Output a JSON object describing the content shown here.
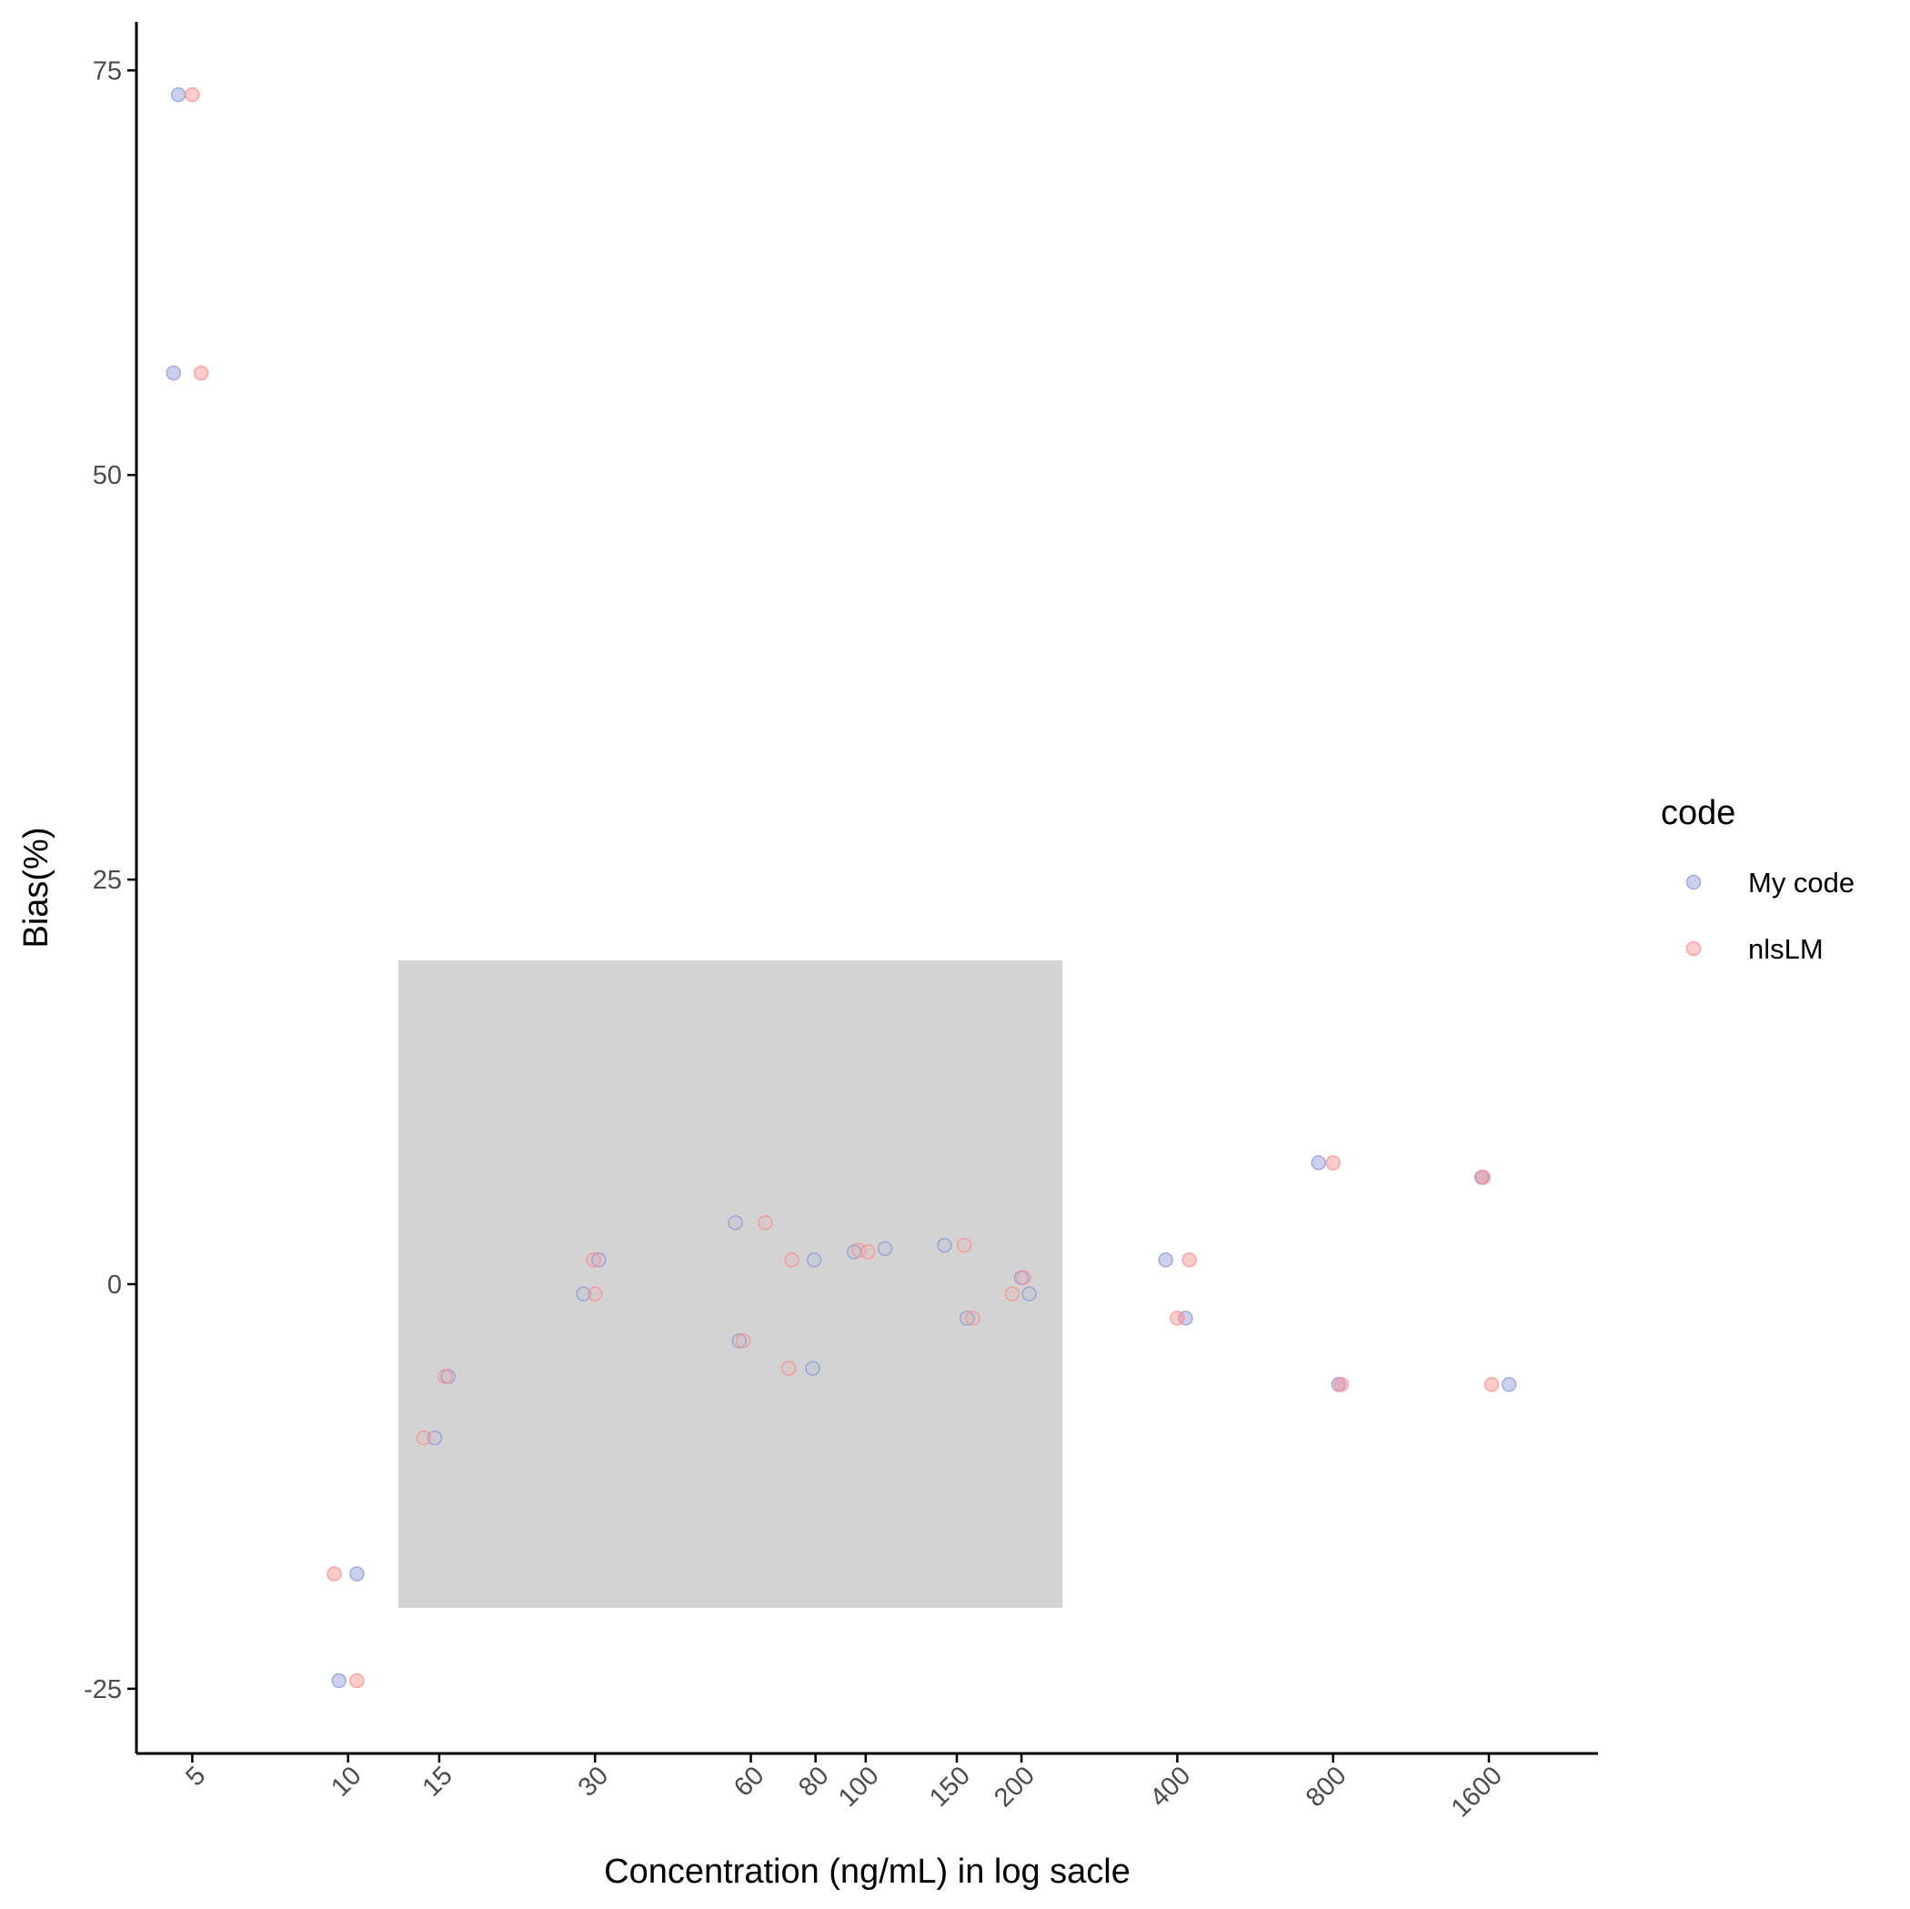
{
  "chart_data": {
    "type": "scatter",
    "title": "",
    "xlabel": "Concentration (ng/mL) in log sacle",
    "ylabel": "Bias(%)",
    "x_scale": "log",
    "xlim": [
      3.9,
      2600
    ],
    "ylim": [
      -29,
      78
    ],
    "x_ticks": [
      5,
      10,
      15,
      30,
      60,
      80,
      100,
      150,
      200,
      400,
      800,
      1600
    ],
    "x_tick_labels": [
      "5",
      "10",
      "15",
      "30",
      "60",
      "80",
      "100",
      "150",
      "200",
      "400",
      "800",
      "1600"
    ],
    "y_ticks": [
      75,
      50,
      25,
      0,
      -25
    ],
    "y_tick_labels": [
      "75",
      "50",
      "25",
      "0",
      "-25"
    ],
    "grid": false,
    "legend": {
      "title": "code",
      "position": "right",
      "entries": [
        "My code",
        "nlsLM"
      ]
    },
    "shaded_region": {
      "x": [
        12.5,
        240
      ],
      "y": [
        -20,
        20
      ],
      "color": "#d3d3d3"
    },
    "colors": {
      "My code": "#8c96d7",
      "nlsLM": "#ff8c8c"
    },
    "series": [
      {
        "name": "My code",
        "points": [
          [
            4.7,
            73.5
          ],
          [
            4.6,
            56.3
          ],
          [
            10.4,
            -17.9
          ],
          [
            9.6,
            -24.5
          ],
          [
            14.7,
            -9.5
          ],
          [
            15.6,
            -5.7
          ],
          [
            30.5,
            1.5
          ],
          [
            28.5,
            -0.6
          ],
          [
            56,
            3.8
          ],
          [
            57,
            -3.5
          ],
          [
            79.5,
            1.5
          ],
          [
            79,
            -5.2
          ],
          [
            95,
            2.0
          ],
          [
            109,
            2.2
          ],
          [
            142,
            2.4
          ],
          [
            157,
            -2.1
          ],
          [
            200,
            0.4
          ],
          [
            207,
            -0.6
          ],
          [
            380,
            1.5
          ],
          [
            415,
            -2.1
          ],
          [
            750,
            7.5
          ],
          [
            820,
            -6.2
          ],
          [
            1550,
            6.6
          ],
          [
            1750,
            -6.2
          ]
        ]
      },
      {
        "name": "nlsLM",
        "points": [
          [
            5.0,
            73.5
          ],
          [
            5.2,
            56.3
          ],
          [
            9.4,
            -17.9
          ],
          [
            10.4,
            -24.5
          ],
          [
            14.0,
            -9.5
          ],
          [
            15.4,
            -5.7
          ],
          [
            29.8,
            1.5
          ],
          [
            30.0,
            -0.6
          ],
          [
            64,
            3.8
          ],
          [
            58,
            -3.5
          ],
          [
            72,
            1.5
          ],
          [
            71,
            -5.2
          ],
          [
            97,
            2.1
          ],
          [
            101,
            2.0
          ],
          [
            155,
            2.4
          ],
          [
            161,
            -2.1
          ],
          [
            202,
            0.4
          ],
          [
            192,
            -0.6
          ],
          [
            400,
            -2.1
          ],
          [
            422,
            1.5
          ],
          [
            800,
            7.5
          ],
          [
            830,
            -6.2
          ],
          [
            1560,
            6.6
          ],
          [
            1620,
            -6.2
          ]
        ]
      }
    ]
  }
}
